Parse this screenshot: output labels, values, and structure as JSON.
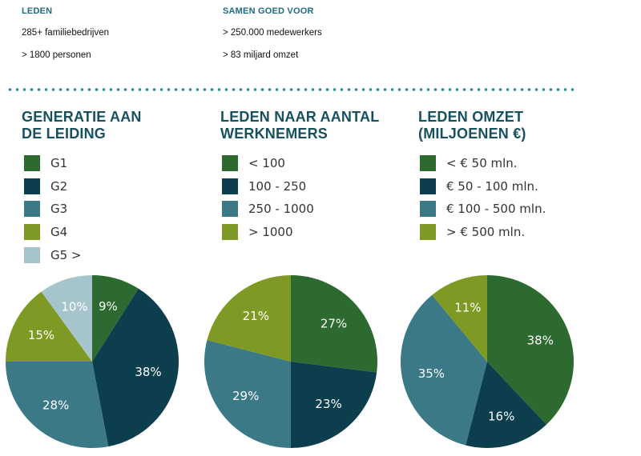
{
  "stats": {
    "leden": {
      "heading": "LEDEN",
      "lines": [
        "285+ familiebedrijven",
        "> 1800 personen"
      ]
    },
    "samen": {
      "heading": "SAMEN GOED VOOR",
      "lines": [
        "> 250.000 medewerkers",
        "> 83 miljard omzet"
      ]
    }
  },
  "colors": {
    "dark_green": "#2d6a2f",
    "dark_teal": "#0d3e4e",
    "mid_teal": "#3b7987",
    "olive": "#7f9a24",
    "light_blue": "#a6c4cb"
  },
  "chart_data": [
    {
      "type": "pie",
      "title": "GENERATIE AAN DE LEIDING",
      "title_lines": [
        "GENERATIE AAN",
        "DE LEIDING"
      ],
      "legend": [
        "G1",
        "G2",
        "G3",
        "G4",
        "G5 >"
      ],
      "values": [
        9,
        38,
        28,
        15,
        10
      ],
      "labels": [
        "9%",
        "38%",
        "28%",
        "15%",
        "10%"
      ],
      "colors": [
        "#2d6a2f",
        "#0d3e4e",
        "#3b7987",
        "#7f9a24",
        "#a6c4cb"
      ]
    },
    {
      "type": "pie",
      "title": "LEDEN NAAR AANTAL WERKNEMERS",
      "title_lines": [
        "LEDEN NAAR AANTAL",
        "WERKNEMERS"
      ],
      "legend": [
        "< 100",
        "100 - 250",
        "250 - 1000",
        "> 1000"
      ],
      "values": [
        27,
        23,
        29,
        21
      ],
      "labels": [
        "27%",
        "23%",
        "29%",
        "21%"
      ],
      "colors": [
        "#2d6a2f",
        "#0d3e4e",
        "#3b7987",
        "#7f9a24"
      ]
    },
    {
      "type": "pie",
      "title": "LEDEN OMZET (MILJOENEN €)",
      "title_lines": [
        "LEDEN OMZET",
        "(MILJOENEN €)"
      ],
      "legend": [
        "< € 50 mln.",
        "€ 50 - 100 mln.",
        "€ 100 - 500 mln.",
        "> € 500 mln."
      ],
      "values": [
        38,
        16,
        35,
        11
      ],
      "labels": [
        "38%",
        "16%",
        "35%",
        "11%"
      ],
      "colors": [
        "#2d6a2f",
        "#0d3e4e",
        "#3b7987",
        "#7f9a24"
      ]
    }
  ]
}
